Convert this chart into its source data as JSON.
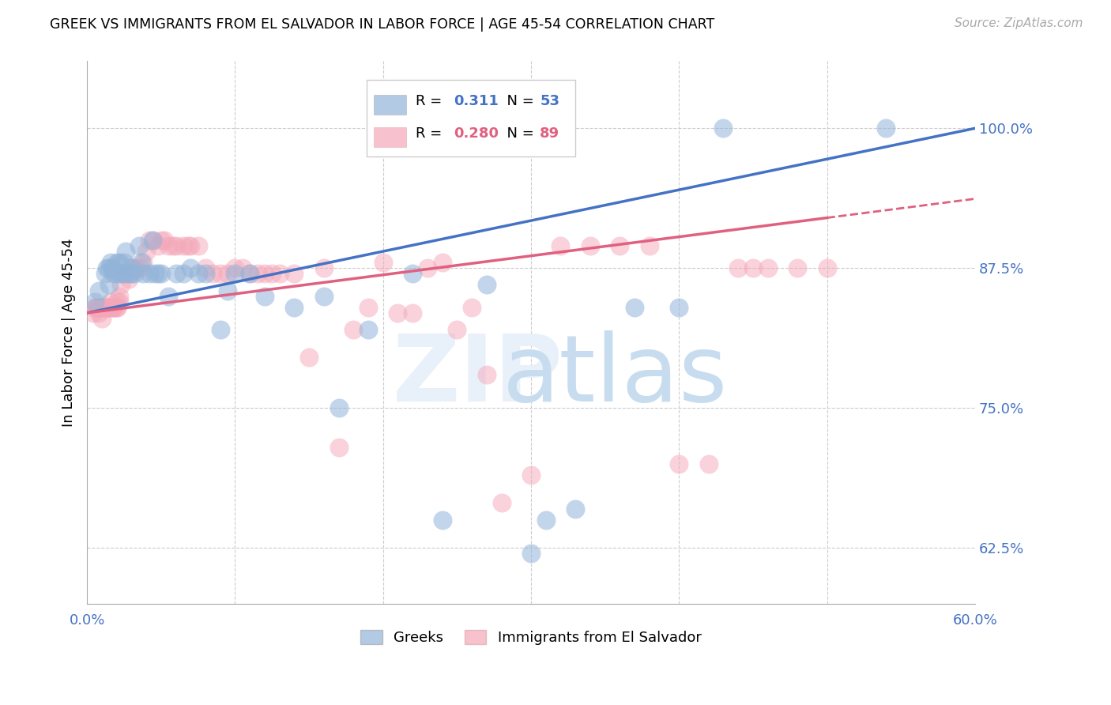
{
  "title": "GREEK VS IMMIGRANTS FROM EL SALVADOR IN LABOR FORCE | AGE 45-54 CORRELATION CHART",
  "source": "Source: ZipAtlas.com",
  "ylabel": "In Labor Force | Age 45-54",
  "ytick_labels": [
    "62.5%",
    "75.0%",
    "87.5%",
    "100.0%"
  ],
  "ytick_values": [
    0.625,
    0.75,
    0.875,
    1.0
  ],
  "xlim": [
    0.0,
    0.6
  ],
  "ylim": [
    0.575,
    1.06
  ],
  "legend_r_blue": "0.311",
  "legend_n_blue": "53",
  "legend_r_pink": "0.280",
  "legend_n_pink": "89",
  "legend_label_blue": "Greeks",
  "legend_label_pink": "Immigrants from El Salvador",
  "blue_color": "#92B4D9",
  "pink_color": "#F4A7B9",
  "trend_blue_color": "#4472C4",
  "trend_pink_color": "#E06080",
  "blue_x": [
    0.005,
    0.008,
    0.012,
    0.013,
    0.015,
    0.015,
    0.016,
    0.017,
    0.018,
    0.02,
    0.02,
    0.022,
    0.023,
    0.025,
    0.025,
    0.026,
    0.028,
    0.03,
    0.03,
    0.032,
    0.035,
    0.037,
    0.038,
    0.042,
    0.044,
    0.046,
    0.048,
    0.05,
    0.055,
    0.06,
    0.065,
    0.07,
    0.075,
    0.08,
    0.09,
    0.095,
    0.1,
    0.11,
    0.12,
    0.14,
    0.16,
    0.17,
    0.19,
    0.22,
    0.24,
    0.27,
    0.3,
    0.31,
    0.33,
    0.37,
    0.4,
    0.43,
    0.54
  ],
  "blue_y": [
    0.845,
    0.855,
    0.87,
    0.875,
    0.86,
    0.875,
    0.88,
    0.875,
    0.87,
    0.87,
    0.88,
    0.88,
    0.87,
    0.87,
    0.88,
    0.89,
    0.87,
    0.875,
    0.87,
    0.87,
    0.895,
    0.88,
    0.87,
    0.87,
    0.9,
    0.87,
    0.87,
    0.87,
    0.85,
    0.87,
    0.87,
    0.875,
    0.87,
    0.87,
    0.82,
    0.855,
    0.87,
    0.87,
    0.85,
    0.84,
    0.85,
    0.75,
    0.82,
    0.87,
    0.65,
    0.86,
    0.62,
    0.65,
    0.66,
    0.84,
    0.84,
    1.0,
    1.0
  ],
  "pink_x": [
    0.004,
    0.005,
    0.006,
    0.007,
    0.008,
    0.008,
    0.009,
    0.01,
    0.01,
    0.01,
    0.012,
    0.013,
    0.013,
    0.014,
    0.015,
    0.015,
    0.016,
    0.017,
    0.018,
    0.018,
    0.02,
    0.02,
    0.02,
    0.022,
    0.022,
    0.023,
    0.025,
    0.025,
    0.026,
    0.028,
    0.028,
    0.03,
    0.03,
    0.032,
    0.033,
    0.034,
    0.036,
    0.038,
    0.04,
    0.042,
    0.045,
    0.048,
    0.05,
    0.052,
    0.055,
    0.058,
    0.06,
    0.065,
    0.068,
    0.07,
    0.075,
    0.08,
    0.085,
    0.09,
    0.095,
    0.1,
    0.105,
    0.11,
    0.115,
    0.12,
    0.125,
    0.13,
    0.14,
    0.15,
    0.16,
    0.17,
    0.18,
    0.19,
    0.2,
    0.21,
    0.22,
    0.23,
    0.24,
    0.25,
    0.26,
    0.27,
    0.28,
    0.3,
    0.32,
    0.34,
    0.36,
    0.38,
    0.4,
    0.42,
    0.44,
    0.45,
    0.46,
    0.48,
    0.5
  ],
  "pink_y": [
    0.835,
    0.84,
    0.84,
    0.84,
    0.84,
    0.835,
    0.84,
    0.83,
    0.84,
    0.84,
    0.84,
    0.84,
    0.84,
    0.84,
    0.84,
    0.84,
    0.845,
    0.84,
    0.84,
    0.84,
    0.84,
    0.84,
    0.845,
    0.85,
    0.845,
    0.86,
    0.87,
    0.87,
    0.87,
    0.87,
    0.865,
    0.875,
    0.875,
    0.875,
    0.875,
    0.875,
    0.875,
    0.88,
    0.89,
    0.9,
    0.9,
    0.895,
    0.9,
    0.9,
    0.895,
    0.895,
    0.895,
    0.895,
    0.895,
    0.895,
    0.895,
    0.875,
    0.87,
    0.87,
    0.87,
    0.875,
    0.875,
    0.87,
    0.87,
    0.87,
    0.87,
    0.87,
    0.87,
    0.795,
    0.875,
    0.715,
    0.82,
    0.84,
    0.88,
    0.835,
    0.835,
    0.875,
    0.88,
    0.82,
    0.84,
    0.78,
    0.665,
    0.69,
    0.895,
    0.895,
    0.895,
    0.895,
    0.7,
    0.7,
    0.875,
    0.875,
    0.875,
    0.875,
    0.875
  ]
}
